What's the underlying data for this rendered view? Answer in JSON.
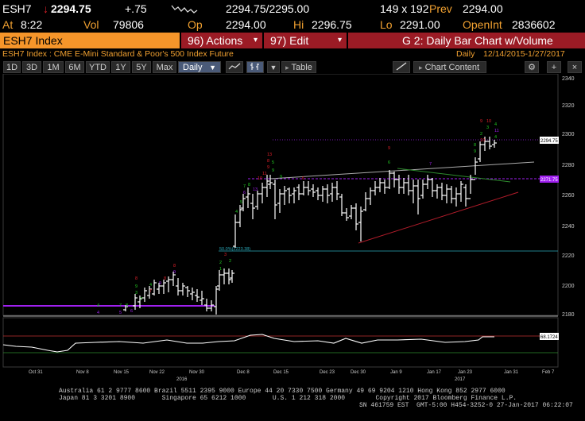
{
  "quote": {
    "ticker": "ESH7",
    "last_arrow": "↓",
    "last": "2294.75",
    "change": "+.75",
    "bid_ask": "2294.75/2295.00",
    "size": "149 x 192",
    "prev_label": "Prev",
    "prev": "2294.00",
    "at_label": "At",
    "time": "8:22",
    "vol_label": "Vol",
    "vol": "79806",
    "op_label": "Op",
    "open": "2294.00",
    "hi_label": "Hi",
    "high": "2296.75",
    "lo_label": "Lo",
    "low": "2291.00",
    "oi_label": "OpenInt",
    "open_int": "2836602"
  },
  "menubar": {
    "security": "ESH7 Index",
    "actions_num": "96)",
    "actions": "Actions",
    "edit_num": "97)",
    "edit": "Edit",
    "graph": "G 2: Daily Bar Chart w/Volume"
  },
  "subtitle": {
    "description": "ESH7 Index : CME E-Mini Standard & Poor's 500 Index Future",
    "period_label": "Daily",
    "date_range": "12/14/2015-1/27/2017"
  },
  "toolbar": {
    "periods": [
      "1D",
      "3D",
      "1M",
      "6M",
      "YTD",
      "1Y",
      "5Y",
      "Max"
    ],
    "frequency": "Daily",
    "table": "Table",
    "chart_content": "Chart Content"
  },
  "chart": {
    "price_axis": [
      "2340",
      "2320",
      "2300",
      "2280",
      "2260",
      "2240",
      "2220",
      "2200",
      "2180"
    ],
    "last_price_tag": "2294.75",
    "ma_tag": "2271.75",
    "fib_label": "50.0%(2223.38)",
    "rsi_tag": "68.1724",
    "date_axis": [
      "Oct 31",
      "Nov 8",
      "Nov 15",
      "Nov 22",
      "Nov 30",
      "Dec 8",
      "Dec 15",
      "Dec 23",
      "Dec 30",
      "Jan 9",
      "Jan 17",
      "Jan 23",
      "Jan 31",
      "Feb 7"
    ],
    "year_labels": [
      "2016",
      "2017"
    ]
  },
  "colors": {
    "orange": "#f5952a",
    "menu_red": "#9b1b25",
    "bar": "#ffffff",
    "purple": "#a020f0",
    "green_count": "#22cc22",
    "red_count": "#e0202a",
    "cyan": "#2aa8b8"
  },
  "footer": {
    "line1": "Australia 61 2 9777 8600 Brazil 5511 2395 9000 Europe 44 20 7330 7500 Germany 49 69 9204 1210 Hong Kong 852 2977 6000",
    "line2": "Japan 81 3 3201 8900       Singapore 65 6212 1000       U.S. 1 212 318 2000        Copyright 2017 Bloomberg Finance L.P.",
    "line3": "SN 461759 EST  GMT-5:00 H454-3252-0 27-Jan-2017 06:22:07"
  }
}
